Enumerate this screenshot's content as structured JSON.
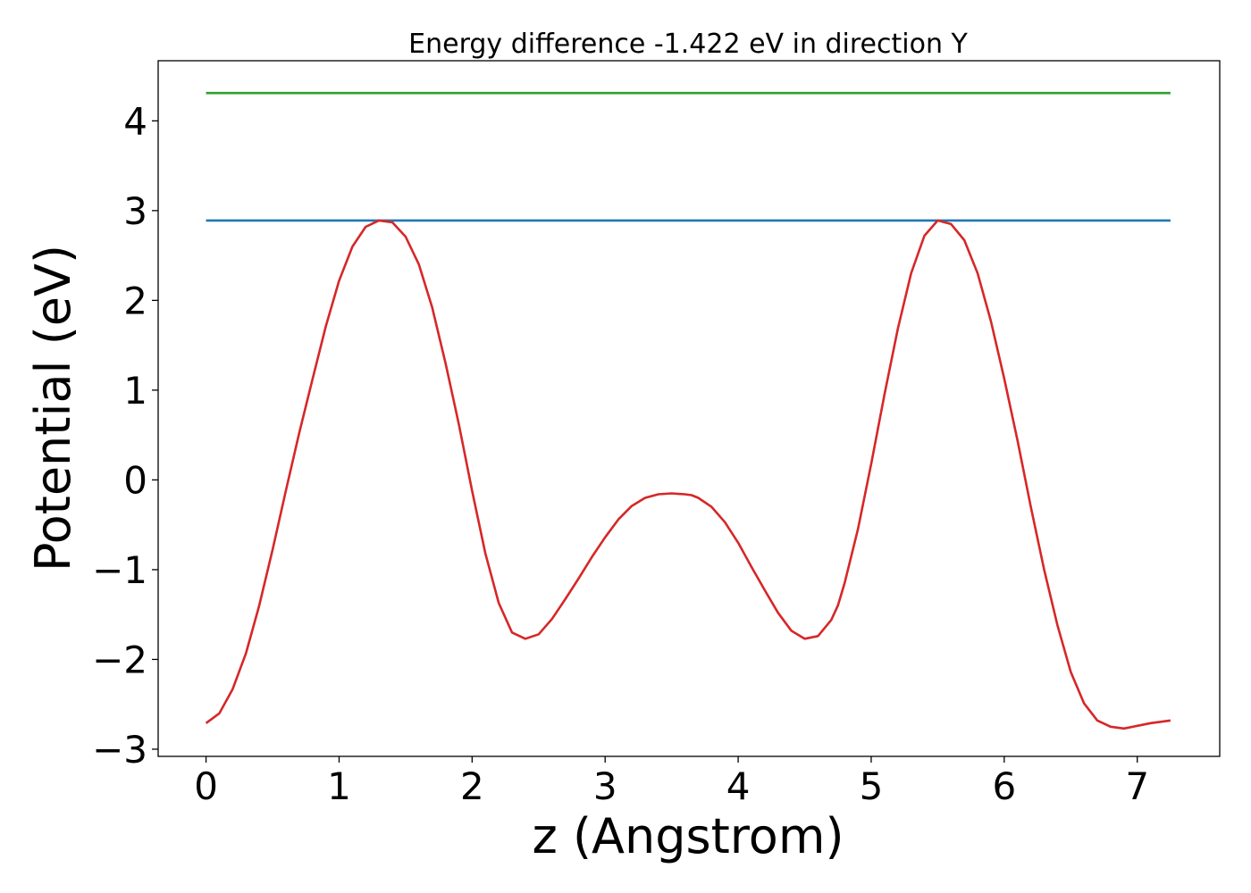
{
  "chart_data": {
    "type": "line",
    "title": "Energy difference -1.422 eV in direction Y",
    "xlabel": "z (Angstrom)",
    "ylabel": "Potential (eV)",
    "xlim": [
      -0.36,
      7.62
    ],
    "ylim": [
      -3.08,
      4.67
    ],
    "xticks": [
      0,
      1,
      2,
      3,
      4,
      5,
      6,
      7
    ],
    "xtick_labels": [
      "0",
      "1",
      "2",
      "3",
      "4",
      "5",
      "6",
      "7"
    ],
    "yticks": [
      -3,
      -2,
      -1,
      0,
      1,
      2,
      3,
      4
    ],
    "ytick_labels": [
      "−3",
      "−2",
      "−1",
      "0",
      "1",
      "2",
      "3",
      "4"
    ],
    "grid": false,
    "series": [
      {
        "color": "#1f77b4",
        "x": [
          0,
          7.25
        ],
        "y": [
          2.89,
          2.89
        ]
      },
      {
        "color": "#2ca02c",
        "x": [
          0,
          7.25
        ],
        "y": [
          4.31,
          4.31
        ]
      },
      {
        "color": "#d62728",
        "x": [
          0,
          0.1,
          0.2,
          0.3,
          0.4,
          0.5,
          0.6,
          0.7,
          0.8,
          0.9,
          1.0,
          1.1,
          1.2,
          1.3,
          1.4,
          1.5,
          1.6,
          1.7,
          1.8,
          1.9,
          2.0,
          2.1,
          2.2,
          2.3,
          2.4,
          2.5,
          2.6,
          2.7,
          2.8,
          2.9,
          3.0,
          3.1,
          3.2,
          3.3,
          3.4,
          3.5,
          3.6,
          3.65,
          3.7,
          3.8,
          3.9,
          4.0,
          4.1,
          4.2,
          4.3,
          4.4,
          4.5,
          4.6,
          4.7,
          4.75,
          4.8,
          4.9,
          5.0,
          5.1,
          5.2,
          5.3,
          5.4,
          5.5,
          5.6,
          5.7,
          5.8,
          5.9,
          6.0,
          6.1,
          6.2,
          6.3,
          6.4,
          6.5,
          6.6,
          6.7,
          6.8,
          6.9,
          7.0,
          7.1,
          7.2,
          7.25
        ],
        "y": [
          -2.71,
          -2.6,
          -2.33,
          -1.93,
          -1.4,
          -0.78,
          -0.12,
          0.52,
          1.12,
          1.71,
          2.22,
          2.6,
          2.82,
          2.89,
          2.87,
          2.71,
          2.4,
          1.92,
          1.3,
          0.62,
          -0.12,
          -0.82,
          -1.37,
          -1.7,
          -1.77,
          -1.72,
          -1.55,
          -1.33,
          -1.1,
          -0.86,
          -0.64,
          -0.44,
          -0.29,
          -0.2,
          -0.16,
          -0.15,
          -0.16,
          -0.17,
          -0.2,
          -0.3,
          -0.47,
          -0.7,
          -0.97,
          -1.23,
          -1.48,
          -1.68,
          -1.77,
          -1.74,
          -1.56,
          -1.4,
          -1.15,
          -0.55,
          0.18,
          0.95,
          1.68,
          2.3,
          2.72,
          2.89,
          2.85,
          2.67,
          2.3,
          1.77,
          1.13,
          0.44,
          -0.3,
          -1.0,
          -1.62,
          -2.14,
          -2.49,
          -2.68,
          -2.75,
          -2.77,
          -2.74,
          -2.71,
          -2.69,
          -2.68
        ]
      }
    ]
  }
}
